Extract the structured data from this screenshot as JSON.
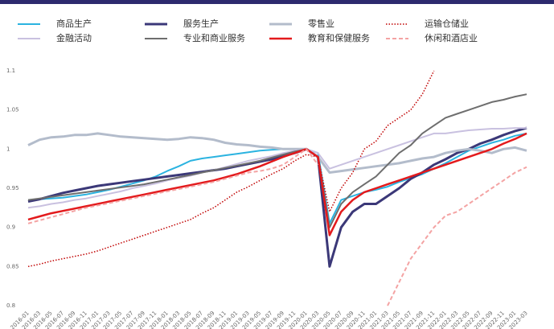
{
  "chart_data": {
    "type": "line",
    "categories": [
      "2016-01",
      "2016-03",
      "2016-05",
      "2016-07",
      "2016-09",
      "2016-11",
      "2017-01",
      "2017-03",
      "2017-05",
      "2017-07",
      "2017-09",
      "2017-11",
      "2018-01",
      "2018-03",
      "2018-05",
      "2018-07",
      "2018-09",
      "2018-11",
      "2019-01",
      "2019-03",
      "2019-05",
      "2019-07",
      "2019-09",
      "2019-11",
      "2020-01",
      "2020-03",
      "2020-05",
      "2020-07",
      "2020-09",
      "2020-11",
      "2021-01",
      "2021-03",
      "2021-05",
      "2021-07",
      "2021-09",
      "2021-11",
      "2022-01",
      "2022-03",
      "2022-05",
      "2022-07",
      "2022-09",
      "2022-11",
      "2023-01",
      "2023-03"
    ],
    "ylim": [
      0.8,
      1.1
    ],
    "yticks": [
      0.8,
      0.85,
      0.9,
      0.95,
      1,
      1.05,
      1.1
    ],
    "series": [
      {
        "name": "商品生产",
        "color": "#2bb3e0",
        "style": "solid",
        "width": 2,
        "values": [
          0.935,
          0.936,
          0.937,
          0.938,
          0.94,
          0.942,
          0.945,
          0.948,
          0.952,
          0.956,
          0.96,
          0.965,
          0.972,
          0.978,
          0.985,
          0.988,
          0.99,
          0.992,
          0.994,
          0.996,
          0.998,
          0.999,
          1.0,
          1.0,
          1.0,
          0.995,
          0.905,
          0.935,
          0.94,
          0.945,
          0.948,
          0.952,
          0.958,
          0.963,
          0.968,
          0.975,
          0.982,
          0.99,
          0.998,
          1.003,
          1.008,
          1.012,
          1.017,
          1.02
        ]
      },
      {
        "name": "服务生产",
        "color": "#3b3878",
        "style": "solid",
        "width": 3,
        "values": [
          0.933,
          0.936,
          0.94,
          0.944,
          0.947,
          0.95,
          0.953,
          0.955,
          0.957,
          0.959,
          0.961,
          0.963,
          0.965,
          0.967,
          0.969,
          0.971,
          0.973,
          0.975,
          0.978,
          0.981,
          0.984,
          0.987,
          0.991,
          0.995,
          1.0,
          0.99,
          0.85,
          0.9,
          0.92,
          0.93,
          0.93,
          0.94,
          0.95,
          0.962,
          0.97,
          0.98,
          0.987,
          0.995,
          1.0,
          1.007,
          1.012,
          1.018,
          1.023,
          1.027
        ]
      },
      {
        "name": "零售业",
        "color": "#b3bccb",
        "style": "solid",
        "width": 3,
        "values": [
          1.005,
          1.012,
          1.015,
          1.016,
          1.018,
          1.018,
          1.02,
          1.018,
          1.016,
          1.015,
          1.014,
          1.013,
          1.012,
          1.013,
          1.015,
          1.014,
          1.012,
          1.008,
          1.006,
          1.005,
          1.003,
          1.002,
          1.0,
          1.0,
          1.0,
          0.99,
          0.97,
          0.972,
          0.974,
          0.976,
          0.978,
          0.98,
          0.982,
          0.985,
          0.988,
          0.99,
          0.995,
          0.998,
          1.0,
          0.998,
          0.995,
          1.0,
          1.002,
          0.998
        ]
      },
      {
        "name": "运输仓储业",
        "color": "#c00000",
        "style": "dotted",
        "width": 1.5,
        "values": [
          0.85,
          0.853,
          0.857,
          0.86,
          0.863,
          0.866,
          0.87,
          0.875,
          0.88,
          0.885,
          0.89,
          0.895,
          0.9,
          0.905,
          0.91,
          0.918,
          0.925,
          0.935,
          0.945,
          0.952,
          0.96,
          0.968,
          0.975,
          0.985,
          0.993,
          0.99,
          0.92,
          0.95,
          0.97,
          1.0,
          1.01,
          1.03,
          1.04,
          1.05,
          1.07,
          1.1,
          null,
          null,
          null,
          null,
          null,
          null,
          null,
          null
        ]
      },
      {
        "name": "金融活动",
        "color": "#c9c1e0",
        "style": "solid",
        "width": 2,
        "values": [
          0.925,
          0.927,
          0.93,
          0.932,
          0.935,
          0.937,
          0.94,
          0.943,
          0.946,
          0.95,
          0.953,
          0.956,
          0.96,
          0.963,
          0.966,
          0.97,
          0.973,
          0.977,
          0.981,
          0.985,
          0.988,
          0.991,
          0.995,
          0.998,
          1.0,
          0.995,
          0.975,
          0.98,
          0.985,
          0.99,
          0.995,
          1.0,
          1.005,
          1.01,
          1.015,
          1.02,
          1.02,
          1.022,
          1.024,
          1.025,
          1.026,
          1.026,
          1.027,
          1.027
        ]
      },
      {
        "name": "专业和商业服务",
        "color": "#6e6e6e",
        "style": "solid",
        "width": 2,
        "values": [
          0.935,
          0.937,
          0.939,
          0.941,
          0.943,
          0.945,
          0.947,
          0.949,
          0.951,
          0.953,
          0.955,
          0.958,
          0.961,
          0.964,
          0.967,
          0.97,
          0.973,
          0.976,
          0.979,
          0.982,
          0.985,
          0.989,
          0.993,
          0.997,
          1.0,
          0.99,
          0.9,
          0.93,
          0.945,
          0.955,
          0.965,
          0.98,
          0.995,
          1.005,
          1.02,
          1.03,
          1.04,
          1.045,
          1.05,
          1.055,
          1.06,
          1.063,
          1.067,
          1.07
        ]
      },
      {
        "name": "教育和保健服务",
        "color": "#e31a1c",
        "style": "solid",
        "width": 2.5,
        "values": [
          0.91,
          0.914,
          0.918,
          0.921,
          0.924,
          0.927,
          0.93,
          0.933,
          0.936,
          0.939,
          0.942,
          0.945,
          0.948,
          0.951,
          0.954,
          0.957,
          0.96,
          0.964,
          0.968,
          0.973,
          0.978,
          0.984,
          0.99,
          0.995,
          1.0,
          0.99,
          0.89,
          0.92,
          0.935,
          0.945,
          0.95,
          0.955,
          0.96,
          0.965,
          0.97,
          0.975,
          0.98,
          0.985,
          0.99,
          0.995,
          1.0,
          1.007,
          1.013,
          1.02
        ]
      },
      {
        "name": "休闲和酒店业",
        "color": "#f4a3a3",
        "style": "dashed",
        "width": 2,
        "values": [
          0.905,
          0.909,
          0.913,
          0.917,
          0.921,
          0.925,
          0.928,
          0.931,
          0.934,
          0.937,
          0.94,
          0.943,
          0.946,
          0.949,
          0.952,
          0.955,
          0.958,
          0.962,
          0.966,
          0.97,
          0.972,
          0.975,
          0.98,
          0.99,
          1.0,
          0.98,
          null,
          null,
          null,
          null,
          null,
          0.8,
          0.83,
          0.86,
          0.88,
          0.9,
          0.915,
          0.92,
          0.93,
          0.94,
          0.95,
          0.96,
          0.97,
          0.977
        ]
      }
    ]
  }
}
